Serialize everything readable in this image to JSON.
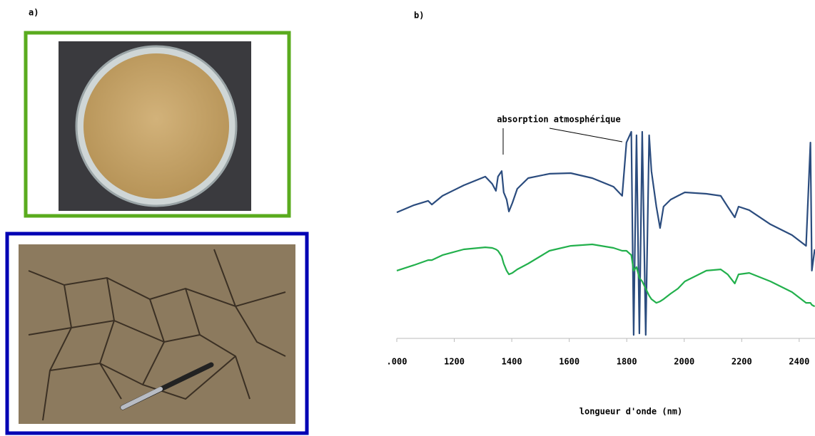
{
  "panels": {
    "a": "a)",
    "b": "b)"
  },
  "chart_data": {
    "type": "line",
    "annotation": "absorption atmosphérique",
    "x_label": "longueur  d'onde (nm)",
    "x": [
      1000,
      1060,
      1109,
      1122,
      1159,
      1233,
      1308,
      1332,
      1345,
      1352,
      1365,
      1372,
      1382,
      1390,
      1402,
      1419,
      1457,
      1531,
      1605,
      1680,
      1754,
      1784,
      1799,
      1816,
      1824,
      1834,
      1844,
      1854,
      1866,
      1878,
      1886,
      1903,
      1916,
      1928,
      1953,
      1978,
      2002,
      2077,
      2127,
      2151,
      2176,
      2189,
      2226,
      2300,
      2375,
      2424,
      2439,
      2444,
      2454
    ],
    "series": [
      {
        "color": "#2b4c7e",
        "values": [
          0.61,
          0.645,
          0.666,
          0.648,
          0.69,
          0.741,
          0.783,
          0.748,
          0.714,
          0.783,
          0.81,
          0.707,
          0.672,
          0.614,
          0.655,
          0.724,
          0.776,
          0.797,
          0.8,
          0.776,
          0.734,
          0.69,
          0.948,
          1.0,
          0.017,
          0.983,
          0.024,
          1.0,
          0.017,
          0.983,
          0.81,
          0.638,
          0.534,
          0.638,
          0.672,
          0.69,
          0.707,
          0.7,
          0.69,
          0.638,
          0.586,
          0.638,
          0.621,
          0.552,
          0.5,
          0.448,
          0.948,
          0.328,
          0.431
        ]
      },
      {
        "color": "#22b04c",
        "values": [
          0.328,
          0.355,
          0.379,
          0.379,
          0.403,
          0.431,
          0.441,
          0.438,
          0.431,
          0.424,
          0.397,
          0.362,
          0.328,
          0.31,
          0.317,
          0.334,
          0.362,
          0.424,
          0.448,
          0.455,
          0.438,
          0.424,
          0.424,
          0.403,
          0.328,
          0.345,
          0.293,
          0.276,
          0.241,
          0.207,
          0.19,
          0.172,
          0.179,
          0.19,
          0.217,
          0.241,
          0.276,
          0.328,
          0.334,
          0.31,
          0.266,
          0.31,
          0.317,
          0.276,
          0.224,
          0.172,
          0.172,
          0.162,
          0.155
        ]
      }
    ],
    "xlim": [
      1000,
      2455
    ],
    "ylim": [
      0,
      1
    ],
    "xticks": [
      {
        "value": 1000,
        "label": ".000"
      },
      1200,
      1400,
      1600,
      1800,
      2000,
      2200,
      2400
    ]
  }
}
